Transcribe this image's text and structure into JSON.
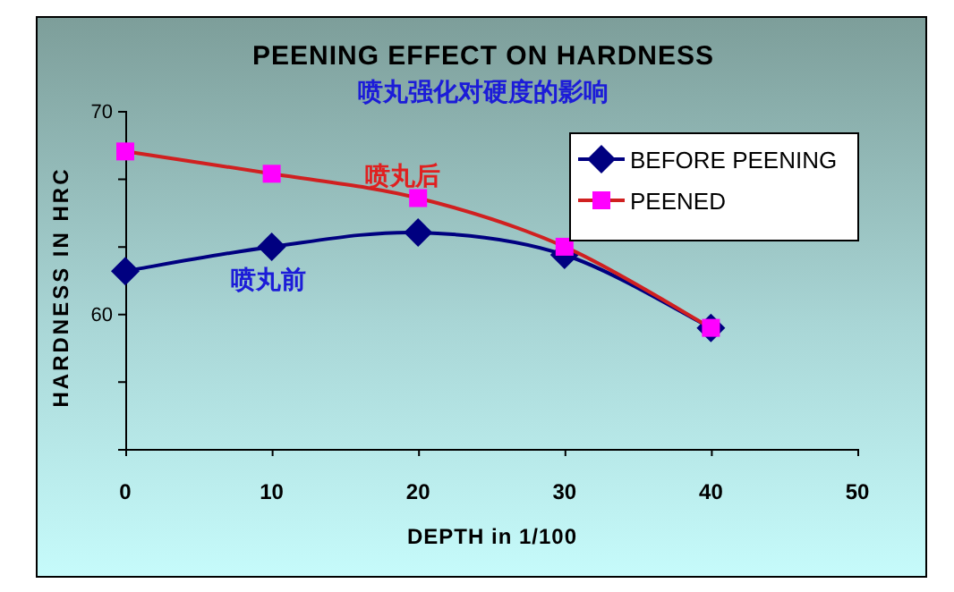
{
  "chart_data": {
    "type": "line",
    "title": "PEENING EFFECT ON HARDNESS",
    "subtitle": "喷丸强化对硬度的影响",
    "xlabel": "DEPTH in 1/100",
    "ylabel": "HARDNESS IN HRC",
    "x": [
      0,
      10,
      20,
      30,
      40
    ],
    "series": [
      {
        "name": "BEFORE PEENING",
        "color": "#000080",
        "marker": "diamond",
        "values": [
          62.1,
          63.3,
          64.0,
          62.9,
          59.3
        ]
      },
      {
        "name": "PEENED",
        "color": "#ff00ff",
        "marker": "square",
        "values": [
          68.0,
          66.9,
          65.7,
          63.3,
          59.3
        ]
      }
    ],
    "xlim": [
      0,
      50
    ],
    "xticks": [
      0,
      10,
      20,
      30,
      40,
      50
    ],
    "ylim": [
      53.33,
      70
    ],
    "yticks": [
      {
        "value": 70,
        "label": "70"
      },
      {
        "value": 66.67,
        "label": null
      },
      {
        "value": 63.33,
        "label": null
      },
      {
        "value": 60,
        "label": "60"
      },
      {
        "value": 56.67,
        "label": null
      },
      {
        "value": 53.33,
        "label": null
      }
    ],
    "legend": "top right",
    "grid": false,
    "annotations": [
      "喷丸后",
      "喷丸前"
    ]
  }
}
